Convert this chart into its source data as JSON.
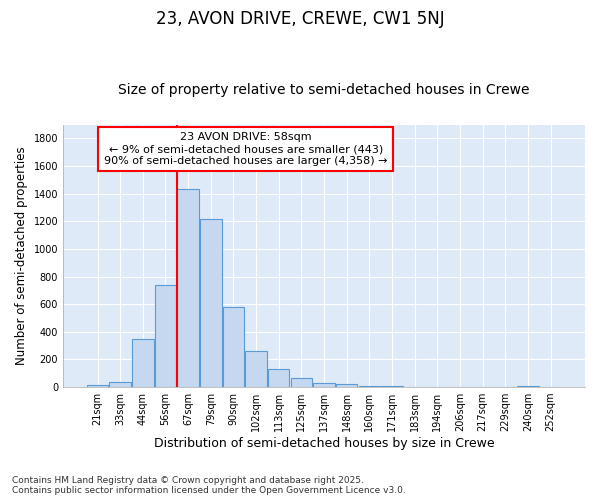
{
  "title": "23, AVON DRIVE, CREWE, CW1 5NJ",
  "subtitle": "Size of property relative to semi-detached houses in Crewe",
  "xlabel": "Distribution of semi-detached houses by size in Crewe",
  "ylabel": "Number of semi-detached properties",
  "categories": [
    "21sqm",
    "33sqm",
    "44sqm",
    "56sqm",
    "67sqm",
    "79sqm",
    "90sqm",
    "102sqm",
    "113sqm",
    "125sqm",
    "137sqm",
    "148sqm",
    "160sqm",
    "171sqm",
    "183sqm",
    "194sqm",
    "206sqm",
    "217sqm",
    "229sqm",
    "240sqm",
    "252sqm"
  ],
  "values": [
    15,
    35,
    345,
    740,
    1430,
    1215,
    578,
    258,
    130,
    65,
    32,
    22,
    10,
    8,
    3,
    2,
    0,
    1,
    0,
    5,
    2
  ],
  "bar_color": "#c5d8f0",
  "bar_edge_color": "#5b9bd5",
  "vline_color": "red",
  "vline_pos": 3.5,
  "annotation_text": "23 AVON DRIVE: 58sqm\n← 9% of semi-detached houses are smaller (443)\n90% of semi-detached houses are larger (4,358) →",
  "ylim": [
    0,
    1900
  ],
  "yticks": [
    0,
    200,
    400,
    600,
    800,
    1000,
    1200,
    1400,
    1600,
    1800
  ],
  "footer": "Contains HM Land Registry data © Crown copyright and database right 2025.\nContains public sector information licensed under the Open Government Licence v3.0.",
  "bg_color": "#ffffff",
  "plot_bg_color": "#deeaf8",
  "title_fontsize": 12,
  "subtitle_fontsize": 10,
  "tick_fontsize": 7,
  "ylabel_fontsize": 8.5,
  "xlabel_fontsize": 9,
  "footer_fontsize": 6.5,
  "annotation_fontsize": 8
}
